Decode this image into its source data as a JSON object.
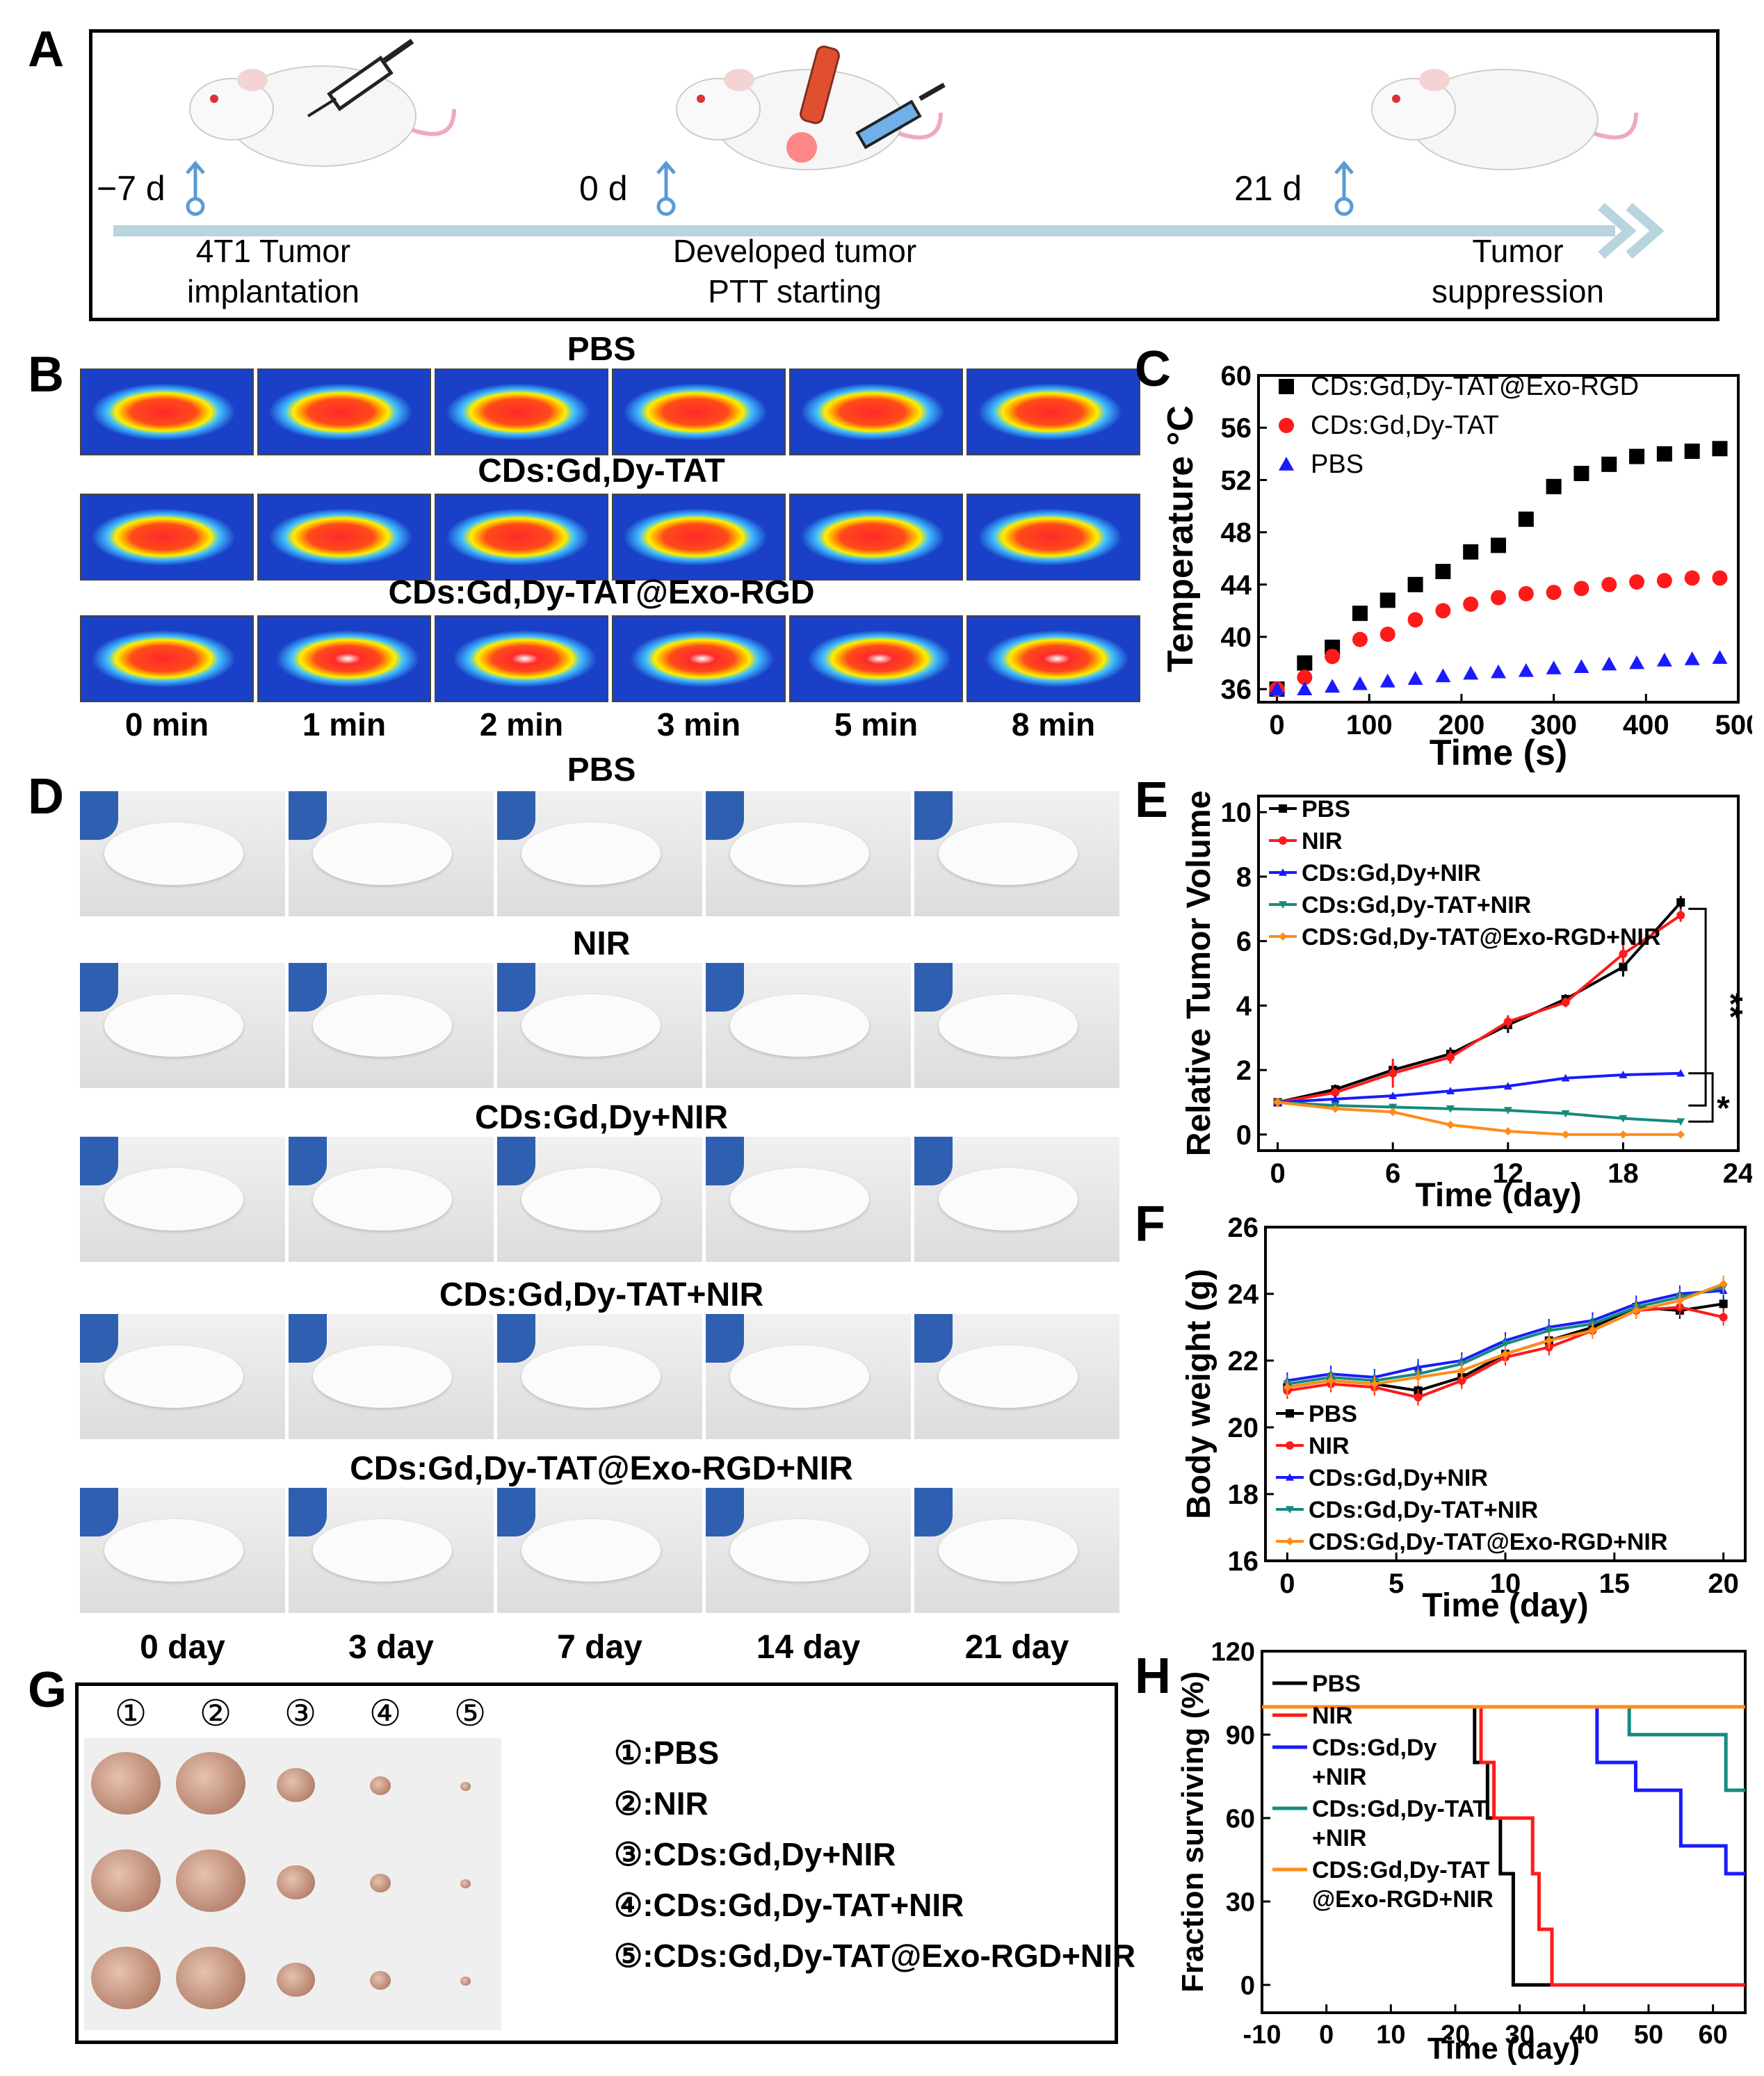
{
  "panelA": {
    "label": "A",
    "days": [
      "−7 d",
      "0 d",
      "21 d"
    ],
    "steps": [
      [
        "4T1 Tumor",
        "implantation"
      ],
      [
        "Developed tumor",
        "PTT starting"
      ],
      [
        "Tumor",
        "suppression"
      ]
    ]
  },
  "panelB": {
    "label": "B",
    "groups": [
      "PBS",
      "CDs:Gd,Dy-TAT",
      "CDs:Gd,Dy-TAT@Exo-RGD"
    ],
    "times": [
      "0 min",
      "1 min",
      "2 min",
      "3 min",
      "5 min",
      "8 min"
    ]
  },
  "panelD": {
    "label": "D",
    "groups": [
      "PBS",
      "NIR",
      "CDs:Gd,Dy+NIR",
      "CDs:Gd,Dy-TAT+NIR",
      "CDs:Gd,Dy-TAT@Exo-RGD+NIR"
    ],
    "days": [
      "0 day",
      "3 day",
      "7 day",
      "14 day",
      "21 day"
    ]
  },
  "panelG": {
    "label": "G",
    "numbers": [
      "①",
      "②",
      "③",
      "④",
      "⑤"
    ],
    "legend": [
      "①:PBS",
      "②:NIR",
      "③:CDs:Gd,Dy+NIR",
      "④:CDs:Gd,Dy-TAT+NIR",
      "⑤:CDs:Gd,Dy-TAT@Exo-RGD+NIR"
    ],
    "tumor_sizes": [
      1.0,
      1.0,
      0.55,
      0.3,
      0.15
    ]
  },
  "colors": {
    "black": "#000000",
    "red": "#ff1a1a",
    "blue": "#1a1aff",
    "teal": "#168a7f",
    "orange": "#ff8c1a",
    "arrow": "#b8d4de"
  },
  "chart_data": [
    {
      "id": "C",
      "type": "scatter",
      "label": "C",
      "xlabel": "Time (s)",
      "ylabel": "Temperature °C",
      "xlim": [
        -20,
        500
      ],
      "ylim": [
        35,
        60
      ],
      "xticks": [
        0,
        100,
        200,
        300,
        400,
        500
      ],
      "yticks": [
        36,
        40,
        44,
        48,
        52,
        56,
        60
      ],
      "legend_position": "top-left",
      "series": [
        {
          "name": "CDs:Gd,Dy-TAT@Exo-RGD",
          "marker": "square",
          "color": "#000000",
          "x": [
            0,
            30,
            60,
            90,
            120,
            150,
            180,
            210,
            240,
            270,
            300,
            330,
            360,
            390,
            420,
            450,
            480
          ],
          "y": [
            36,
            38,
            39.2,
            41.8,
            42.8,
            44,
            45,
            46.5,
            47,
            49,
            51.5,
            52.5,
            53.2,
            53.8,
            54,
            54.2,
            54.4
          ]
        },
        {
          "name": "CDs:Gd,Dy-TAT",
          "marker": "circle",
          "color": "#ff1a1a",
          "x": [
            0,
            30,
            60,
            90,
            120,
            150,
            180,
            210,
            240,
            270,
            300,
            330,
            360,
            390,
            420,
            450,
            480
          ],
          "y": [
            36,
            36.9,
            38.5,
            39.8,
            40.2,
            41.3,
            42,
            42.5,
            43,
            43.3,
            43.4,
            43.7,
            44,
            44.2,
            44.3,
            44.5,
            44.5
          ]
        },
        {
          "name": "PBS",
          "marker": "triangle",
          "color": "#1a1aff",
          "x": [
            0,
            30,
            60,
            90,
            120,
            150,
            180,
            210,
            240,
            270,
            300,
            330,
            360,
            390,
            420,
            450,
            480
          ],
          "y": [
            36,
            36,
            36.2,
            36.4,
            36.6,
            36.8,
            37,
            37.2,
            37.3,
            37.4,
            37.6,
            37.7,
            37.9,
            38,
            38.2,
            38.3,
            38.4
          ]
        }
      ]
    },
    {
      "id": "E",
      "type": "line",
      "label": "E",
      "xlabel": "Time (day)",
      "ylabel": "Relative Tumor Volume",
      "xlim": [
        -1,
        24
      ],
      "ylim": [
        -0.5,
        10.5
      ],
      "xticks": [
        0,
        6,
        12,
        18,
        24
      ],
      "yticks": [
        0,
        2,
        4,
        6,
        8,
        10
      ],
      "legend_position": "top-left",
      "annotations": [
        "**",
        "*"
      ],
      "x": [
        0,
        3,
        6,
        9,
        12,
        15,
        18,
        21
      ],
      "series": [
        {
          "name": "PBS",
          "color": "#000000",
          "marker": "square",
          "values": [
            1,
            1.4,
            2,
            2.5,
            3.4,
            4.2,
            5.2,
            7.2
          ],
          "err": [
            0.05,
            0.15,
            0.2,
            0.2,
            0.25,
            0.15,
            0.3,
            0.2
          ]
        },
        {
          "name": "NIR",
          "color": "#ff1a1a",
          "marker": "circle",
          "values": [
            1,
            1.3,
            1.9,
            2.4,
            3.5,
            4.1,
            5.6,
            6.8
          ],
          "err": [
            0.05,
            0.15,
            0.45,
            0.2,
            0.2,
            0.15,
            0.3,
            0.2
          ]
        },
        {
          "name": "CDs:Gd,Dy+NIR",
          "color": "#1a1aff",
          "marker": "triangle",
          "values": [
            1,
            1.1,
            1.2,
            1.35,
            1.5,
            1.75,
            1.85,
            1.9
          ],
          "err": [
            0.05,
            0.05,
            0.05,
            0.05,
            0.05,
            0.05,
            0.05,
            0.05
          ]
        },
        {
          "name": "CDs:Gd,Dy-TAT+NIR",
          "color": "#168a7f",
          "marker": "triangle-down",
          "values": [
            1,
            0.9,
            0.85,
            0.8,
            0.75,
            0.65,
            0.5,
            0.4
          ],
          "err": [
            0.05,
            0.05,
            0.05,
            0.05,
            0.05,
            0.05,
            0.05,
            0.05
          ]
        },
        {
          "name": "CDS:Gd,Dy-TAT@Exo-RGD+NIR",
          "color": "#ff8c1a",
          "marker": "diamond",
          "values": [
            1,
            0.8,
            0.7,
            0.3,
            0.1,
            0,
            0,
            0
          ],
          "err": [
            0.05,
            0.05,
            0.05,
            0.05,
            0.05,
            0.02,
            0.02,
            0.02
          ]
        }
      ]
    },
    {
      "id": "F",
      "type": "line",
      "label": "F",
      "xlabel": "Time (day)",
      "ylabel": "Body weight (g)",
      "xlim": [
        -1,
        21
      ],
      "ylim": [
        16,
        26
      ],
      "xticks": [
        0,
        5,
        10,
        15,
        20
      ],
      "yticks": [
        16,
        18,
        20,
        22,
        24,
        26
      ],
      "legend_position": "bottom-left",
      "x": [
        0,
        2,
        4,
        6,
        8,
        10,
        12,
        14,
        16,
        18,
        20
      ],
      "series": [
        {
          "name": "PBS",
          "color": "#000000",
          "marker": "square",
          "values": [
            21.2,
            21.4,
            21.3,
            21.1,
            21.5,
            22.2,
            22.6,
            23.0,
            23.6,
            23.5,
            23.7
          ]
        },
        {
          "name": "NIR",
          "color": "#ff1a1a",
          "marker": "circle",
          "values": [
            21.1,
            21.3,
            21.2,
            20.9,
            21.4,
            22.1,
            22.4,
            22.9,
            23.5,
            23.6,
            23.3
          ]
        },
        {
          "name": "CDs:Gd,Dy+NIR",
          "color": "#1a1aff",
          "marker": "triangle",
          "values": [
            21.4,
            21.6,
            21.5,
            21.8,
            22.0,
            22.6,
            23.0,
            23.2,
            23.7,
            24.0,
            24.1
          ]
        },
        {
          "name": "CDs:Gd,Dy-TAT+NIR",
          "color": "#168a7f",
          "marker": "triangle-down",
          "values": [
            21.3,
            21.5,
            21.4,
            21.6,
            21.9,
            22.5,
            22.9,
            23.1,
            23.6,
            23.9,
            24.2
          ]
        },
        {
          "name": "CDS:Gd,Dy-TAT@Exo-RGD+NIR",
          "color": "#ff8c1a",
          "marker": "diamond",
          "values": [
            21.2,
            21.4,
            21.3,
            21.5,
            21.7,
            22.2,
            22.6,
            22.9,
            23.5,
            23.8,
            24.3
          ]
        }
      ]
    },
    {
      "id": "H",
      "type": "line",
      "label": "H",
      "xlabel": "Time (day)",
      "ylabel": "Fraction surviving (%)",
      "xlim": [
        -10,
        65
      ],
      "ylim": [
        -10,
        120
      ],
      "xticks": [
        -10,
        0,
        10,
        20,
        30,
        40,
        50,
        60
      ],
      "yticks": [
        0,
        30,
        60,
        90,
        120
      ],
      "legend_position": "left",
      "series": [
        {
          "name": "PBS",
          "color": "#000000",
          "x": [
            -10,
            23,
            23,
            25,
            25,
            27,
            27,
            29,
            29,
            31,
            31,
            65
          ],
          "values": [
            100,
            100,
            80,
            80,
            60,
            60,
            40,
            40,
            0,
            0,
            0,
            0
          ]
        },
        {
          "name": "NIR",
          "color": "#ff1a1a",
          "x": [
            -10,
            24,
            24,
            26,
            26,
            28,
            28,
            32,
            32,
            33,
            33,
            35,
            35,
            65
          ],
          "values": [
            100,
            100,
            80,
            80,
            60,
            60,
            60,
            60,
            40,
            40,
            20,
            20,
            0,
            0
          ]
        },
        {
          "name": "CDs:Gd,Dy+NIR",
          "color": "#1a1aff",
          "x": [
            -10,
            42,
            42,
            48,
            48,
            55,
            55,
            62,
            62,
            65
          ],
          "values": [
            100,
            100,
            80,
            80,
            70,
            70,
            50,
            50,
            40,
            40
          ]
        },
        {
          "name": "CDs:Gd,Dy-TAT+NIR",
          "color": "#168a7f",
          "x": [
            -10,
            47,
            47,
            62,
            62,
            65
          ],
          "values": [
            100,
            100,
            90,
            90,
            70,
            70
          ]
        },
        {
          "name": "CDS:Gd,Dy-TAT@Exo-RGD+NIR",
          "color": "#ff8c1a",
          "x": [
            -10,
            65
          ],
          "values": [
            100,
            100
          ]
        }
      ],
      "legend_lines": [
        [
          "PBS"
        ],
        [
          "NIR"
        ],
        [
          "CDs:Gd,Dy",
          "+NIR"
        ],
        [
          "CDs:Gd,Dy-TAT",
          "+NIR"
        ],
        [
          "CDS:Gd,Dy-TAT",
          "@Exo-RGD+NIR"
        ]
      ]
    }
  ]
}
